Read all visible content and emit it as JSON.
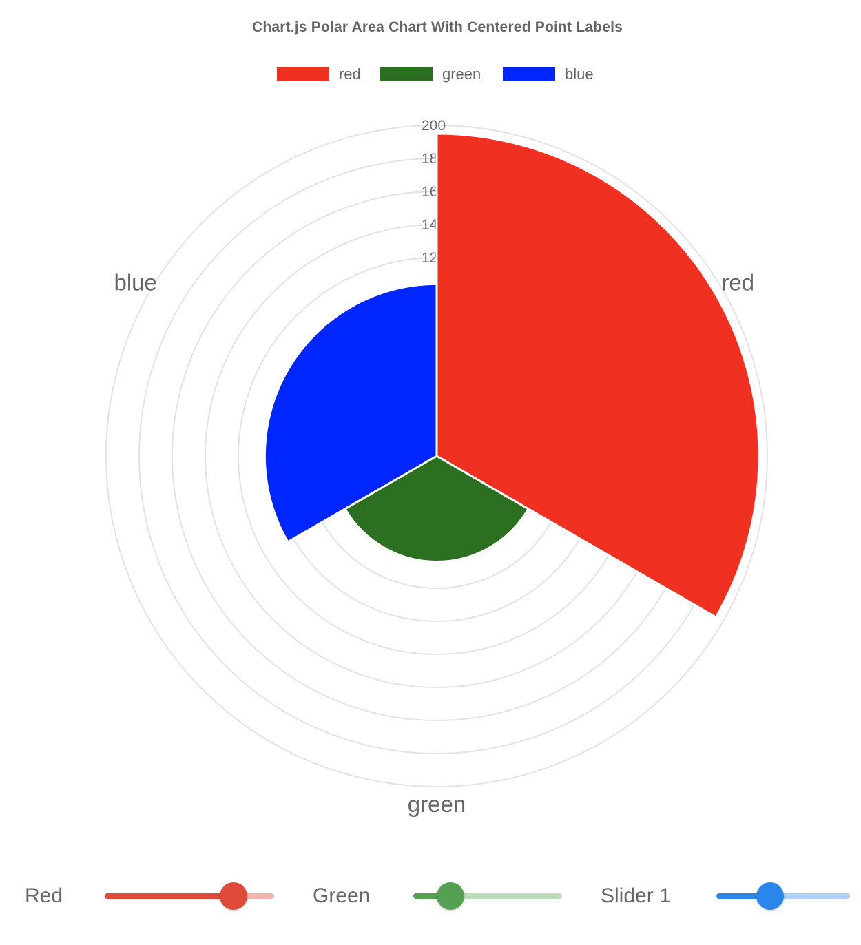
{
  "chart_data": {
    "type": "polarArea",
    "title": "Chart.js Polar Area Chart With Centered Point Labels",
    "categories": [
      "red",
      "green",
      "blue"
    ],
    "values": [
      195,
      64,
      104
    ],
    "colors": [
      "#f03020",
      "#2b7020",
      "#0026ff"
    ],
    "r_ticks": [
      "12",
      "14",
      "16",
      "18",
      "200"
    ],
    "r_range": [
      0,
      200
    ],
    "grid": true,
    "legend_position": "top"
  },
  "controls": [
    {
      "label": "Red",
      "value": 0.76,
      "color": "#e04a3a",
      "track_color": "#f2b5ae"
    },
    {
      "label": "Green",
      "value": 0.25,
      "color": "#55a052",
      "track_color": "#bcdcba"
    },
    {
      "label": "Slider 1",
      "value": 0.4,
      "color": "#2a86ea",
      "track_color": "#aed0f5"
    }
  ]
}
